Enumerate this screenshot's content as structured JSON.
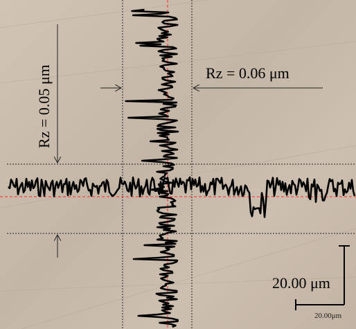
{
  "annotations": {
    "rz_horizontal": "Rz = 0.06 μm",
    "rz_vertical": "Rz = 0.05 μm"
  },
  "scale_bar": {
    "label": "20.00 μm",
    "tick_label": "20.00μm"
  },
  "colors": {
    "background": "#c9bbac",
    "profile": "#000000",
    "center_line": "#ff2a2a",
    "guide_line": "#222222"
  }
}
